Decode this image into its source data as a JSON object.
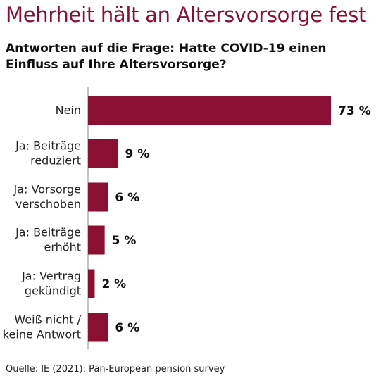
{
  "title": "Mehrheit hält an Altersvorsorge fest",
  "subtitle": "Antworten auf die Frage: Hatte COVID-19 einen Einfluss auf Ihre Altersvorsorge?",
  "source": "Quelle: IE (2021): Pan-European pension survey",
  "colors": {
    "bar": "#8a0f33",
    "title": "#8a0f33",
    "axis": "#888888"
  },
  "chart_data": {
    "type": "bar",
    "orientation": "horizontal",
    "categories": [
      [
        "Nein"
      ],
      [
        "Ja: Beiträge",
        "reduziert"
      ],
      [
        "Ja: Vorsorge",
        "verschoben"
      ],
      [
        "Ja: Beiträge",
        "erhöht"
      ],
      [
        "Ja: Vertrag",
        "gekündigt"
      ],
      [
        "Weiß nicht /",
        "keine Antwort"
      ]
    ],
    "values": [
      73,
      9,
      6,
      5,
      2,
      6
    ],
    "value_labels": [
      "73 %",
      "9 %",
      "6 %",
      "5 %",
      "2 %",
      "6 %"
    ],
    "unit": "%",
    "xlim": [
      0,
      73
    ]
  }
}
